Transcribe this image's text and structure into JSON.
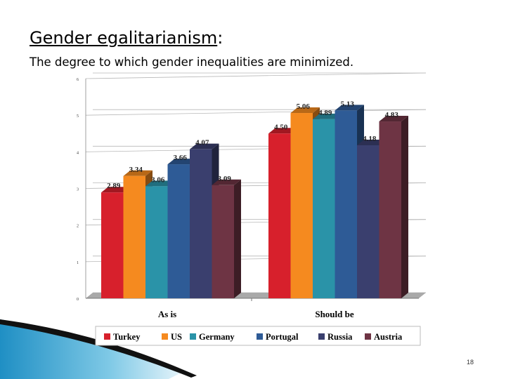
{
  "slide": {
    "title_main": "Gender egalitarianism",
    "title_suffix": ":",
    "subtitle": "The degree to which gender inequalities are minimized.",
    "slide_number": "18"
  },
  "chart_data": {
    "type": "bar",
    "title": "",
    "xlabel": "",
    "ylabel": "",
    "ylim": [
      0,
      6
    ],
    "yticks": [
      "0",
      "1",
      "2",
      "3",
      "4",
      "5",
      "6"
    ],
    "grid": true,
    "legend_position": "bottom",
    "categories": [
      "As is",
      "Should be"
    ],
    "series": [
      {
        "name": "Turkey",
        "color": "#d7202c",
        "values": [
          2.89,
          4.5
        ],
        "labels": [
          "2.89",
          "4.50"
        ]
      },
      {
        "name": "US",
        "color": "#f58a1f",
        "values": [
          3.34,
          5.06
        ],
        "labels": [
          "3.34",
          "5.06"
        ]
      },
      {
        "name": "Germany",
        "color": "#2a93a8",
        "values": [
          3.06,
          4.89
        ],
        "labels": [
          "3.06",
          "4.89"
        ]
      },
      {
        "name": "Portugal",
        "color": "#2e5b96",
        "values": [
          3.66,
          5.13
        ],
        "labels": [
          "3.66",
          "5.13"
        ]
      },
      {
        "name": "Russia",
        "color": "#3a3f6e",
        "values": [
          4.07,
          4.18
        ],
        "labels": [
          "4.07",
          "4.18"
        ]
      },
      {
        "name": "Austria",
        "color": "#6e3444",
        "values": [
          3.09,
          4.83
        ],
        "labels": [
          "3.09",
          "4.83"
        ]
      }
    ]
  }
}
